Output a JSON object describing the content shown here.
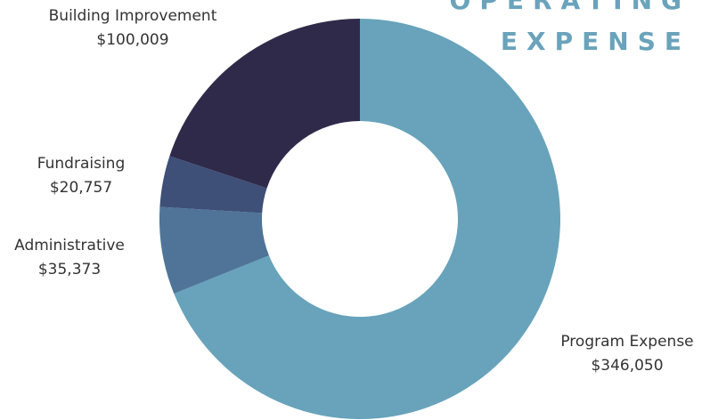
{
  "title": {
    "line1": "OPERATING",
    "line2": "EXPENSE"
  },
  "colors": {
    "background": "#ffffff",
    "title": "#6aa3bb",
    "label_text": "#333333"
  },
  "chart_data": {
    "type": "pie",
    "variant": "donut",
    "title": "OPERATING EXPENSE",
    "slices": [
      {
        "label": "Program Expense",
        "value": 346050,
        "value_label": "$346,050",
        "color": "#68a3bb"
      },
      {
        "label": "Administrative",
        "value": 35373,
        "value_label": "$35,373",
        "color": "#4f7497"
      },
      {
        "label": "Fundraising",
        "value": 20757,
        "value_label": "$20,757",
        "color": "#3e5077"
      },
      {
        "label": "Building Improvement",
        "value": 100009,
        "value_label": "$100,009",
        "color": "#2f2a4a"
      }
    ]
  }
}
